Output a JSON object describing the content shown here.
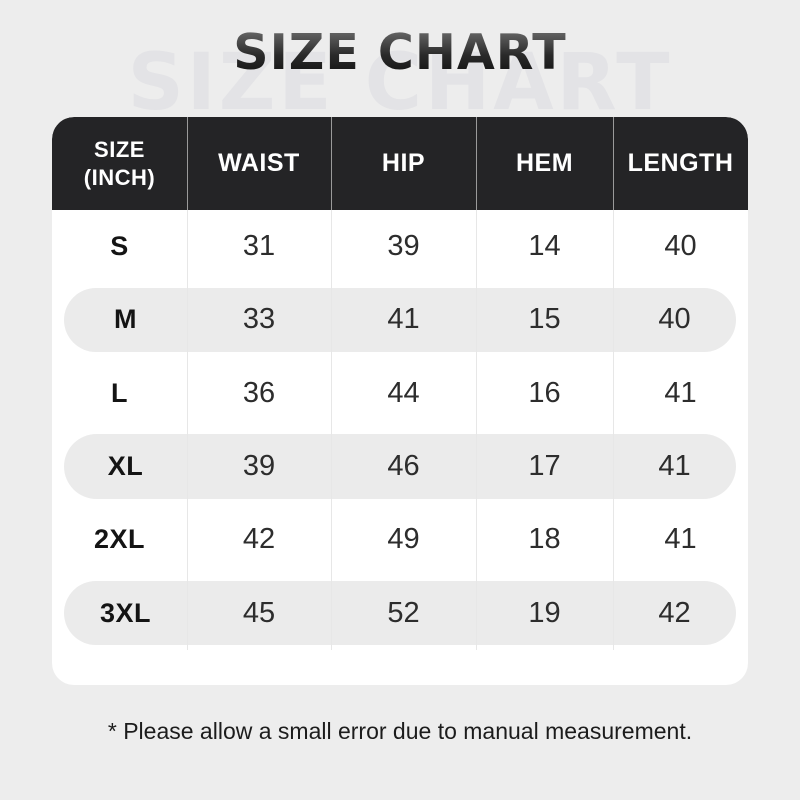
{
  "title": "SIZE CHART",
  "watermark": "SIZE CHART",
  "footnote": "* Please allow a small error due to manual measurement.",
  "size_unit_header": {
    "line1": "SIZE",
    "line2": "(INCH)"
  },
  "column_headers": [
    "WAIST",
    "HIP",
    "HEM",
    "LENGTH"
  ],
  "chart_data": {
    "type": "table",
    "title": "SIZE CHART",
    "unit": "INCH",
    "columns": [
      "SIZE (INCH)",
      "WAIST",
      "HIP",
      "HEM",
      "LENGTH"
    ],
    "rows": [
      [
        "S",
        31,
        39,
        14,
        40
      ],
      [
        "M",
        33,
        41,
        15,
        40
      ],
      [
        "L",
        36,
        44,
        16,
        41
      ],
      [
        "XL",
        39,
        46,
        17,
        41
      ],
      [
        "2XL",
        42,
        49,
        18,
        41
      ],
      [
        "3XL",
        45,
        52,
        19,
        42
      ]
    ]
  },
  "colors": {
    "page_bg": "#ededed",
    "card_bg": "#ffffff",
    "header_bg": "#242426",
    "header_text": "#ffffff",
    "alt_row_bg": "#ebebeb",
    "title_text": "#1d1d1d",
    "watermark_text": "#e3e3e6",
    "body_text": "#2d2d2d"
  }
}
